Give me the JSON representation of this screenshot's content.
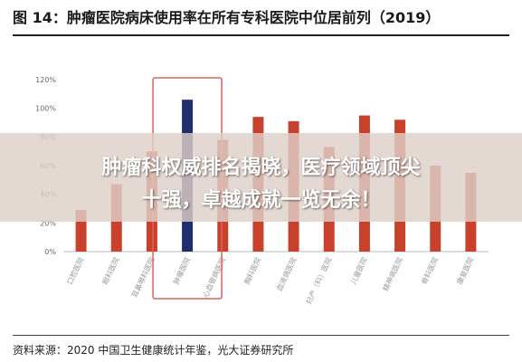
{
  "figure": {
    "title": "图 14：肿瘤医院病床使用率在所有专科医院中位居前列（2019）",
    "source": "资料来源：2020 中国卫生健康统计年鉴，光大证券研究所"
  },
  "banner": {
    "line1": "肿瘤科权威排名揭晓，医疗领域顶尖",
    "line2": "十强，卓越成就一览无余！"
  },
  "colors": {
    "bar": "#c8412d",
    "highlight_bar": "#1f2f6b",
    "highlight_box": "#e0605a",
    "axis_text": "#666666"
  },
  "chart_data": {
    "type": "bar",
    "categories": [
      "口腔医院",
      "眼科医院",
      "耳鼻喉科医院",
      "肿瘤医院",
      "心血管病医院",
      "胸科医院",
      "血液病医院",
      "妇产（科）医院",
      "儿童医院",
      "精神病医院",
      "骨科医院",
      "康复医院"
    ],
    "values": [
      29,
      47,
      70,
      106,
      78,
      94,
      91,
      73,
      95,
      92,
      60,
      55
    ],
    "highlight_index": 3,
    "title": "",
    "xlabel": "",
    "ylabel": "",
    "ylim": [
      0,
      120
    ],
    "yticks": [
      "0%",
      "20%",
      "40%",
      "60%",
      "80%",
      "100%",
      "120%"
    ],
    "grid": false,
    "legend": "none"
  }
}
